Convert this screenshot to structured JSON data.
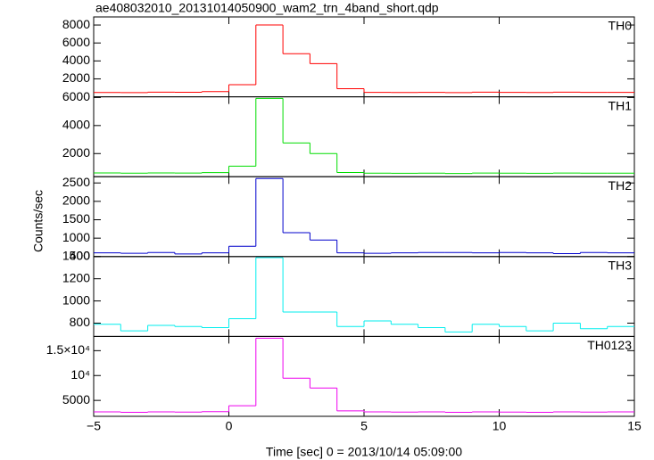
{
  "chart_data": {
    "type": "step",
    "title": "ae408032010_20131014050900_wam2_trn_4band_short.qdp",
    "xlabel": "Time [sec] 0 = 2013/10/14 05:09:00",
    "ylabel": "Counts/sec",
    "xlim": [
      -5,
      15
    ],
    "xticks": [
      {
        "value": -5,
        "label": "−5"
      },
      0,
      5,
      10,
      15
    ],
    "x": [
      -5,
      -4,
      -3,
      -2,
      -1,
      0,
      1,
      2,
      3,
      4,
      5,
      6,
      7,
      8,
      9,
      10,
      11,
      12,
      13,
      14,
      15
    ],
    "panels": [
      {
        "name": "TH0",
        "color": "#ff0000",
        "ylim": [
          0,
          8900
        ],
        "yticks": [
          2000,
          4000,
          6000,
          8000
        ],
        "values": [
          480,
          470,
          520,
          510,
          580,
          1350,
          8000,
          4800,
          3700,
          900,
          500,
          480,
          490,
          470,
          520,
          500,
          480,
          520,
          490,
          500
        ]
      },
      {
        "name": "TH1",
        "color": "#00dd00",
        "ylim": [
          350,
          6050
        ],
        "yticks": [
          2000,
          4000,
          6000
        ],
        "values": [
          620,
          600,
          620,
          610,
          640,
          1100,
          5940,
          2760,
          2000,
          650,
          600,
          590,
          600,
          580,
          610,
          600,
          590,
          610,
          600,
          600
        ]
      },
      {
        "name": "TH2",
        "color": "#0000cc",
        "ylim": [
          500,
          2670
        ],
        "yticks": [
          500,
          1000,
          1500,
          2000,
          2500
        ],
        "values": [
          600,
          590,
          610,
          570,
          600,
          780,
          2620,
          1150,
          950,
          600,
          590,
          600,
          610,
          610,
          600,
          610,
          600,
          580,
          610,
          600
        ]
      },
      {
        "name": "TH3",
        "color": "#00eeee",
        "ylim": [
          680,
          1400
        ],
        "yticks": [
          800,
          1000,
          1200,
          1400
        ],
        "values": [
          790,
          730,
          780,
          770,
          760,
          840,
          1390,
          900,
          900,
          770,
          820,
          790,
          760,
          720,
          790,
          770,
          730,
          800,
          750,
          770
        ]
      },
      {
        "name": "TH0123",
        "color": "#ee00ee",
        "ylim": [
          1800,
          17860
        ],
        "yticks": [
          5000,
          {
            "value": 10000,
            "label": "10⁴"
          },
          {
            "value": 15000,
            "label": "1.5×10⁴"
          }
        ],
        "values": [
          2700,
          2600,
          2700,
          2650,
          2750,
          3930,
          17500,
          9460,
          7500,
          2900,
          2700,
          2650,
          2700,
          2600,
          2700,
          2650,
          2600,
          2700,
          2650,
          2700
        ]
      }
    ]
  }
}
